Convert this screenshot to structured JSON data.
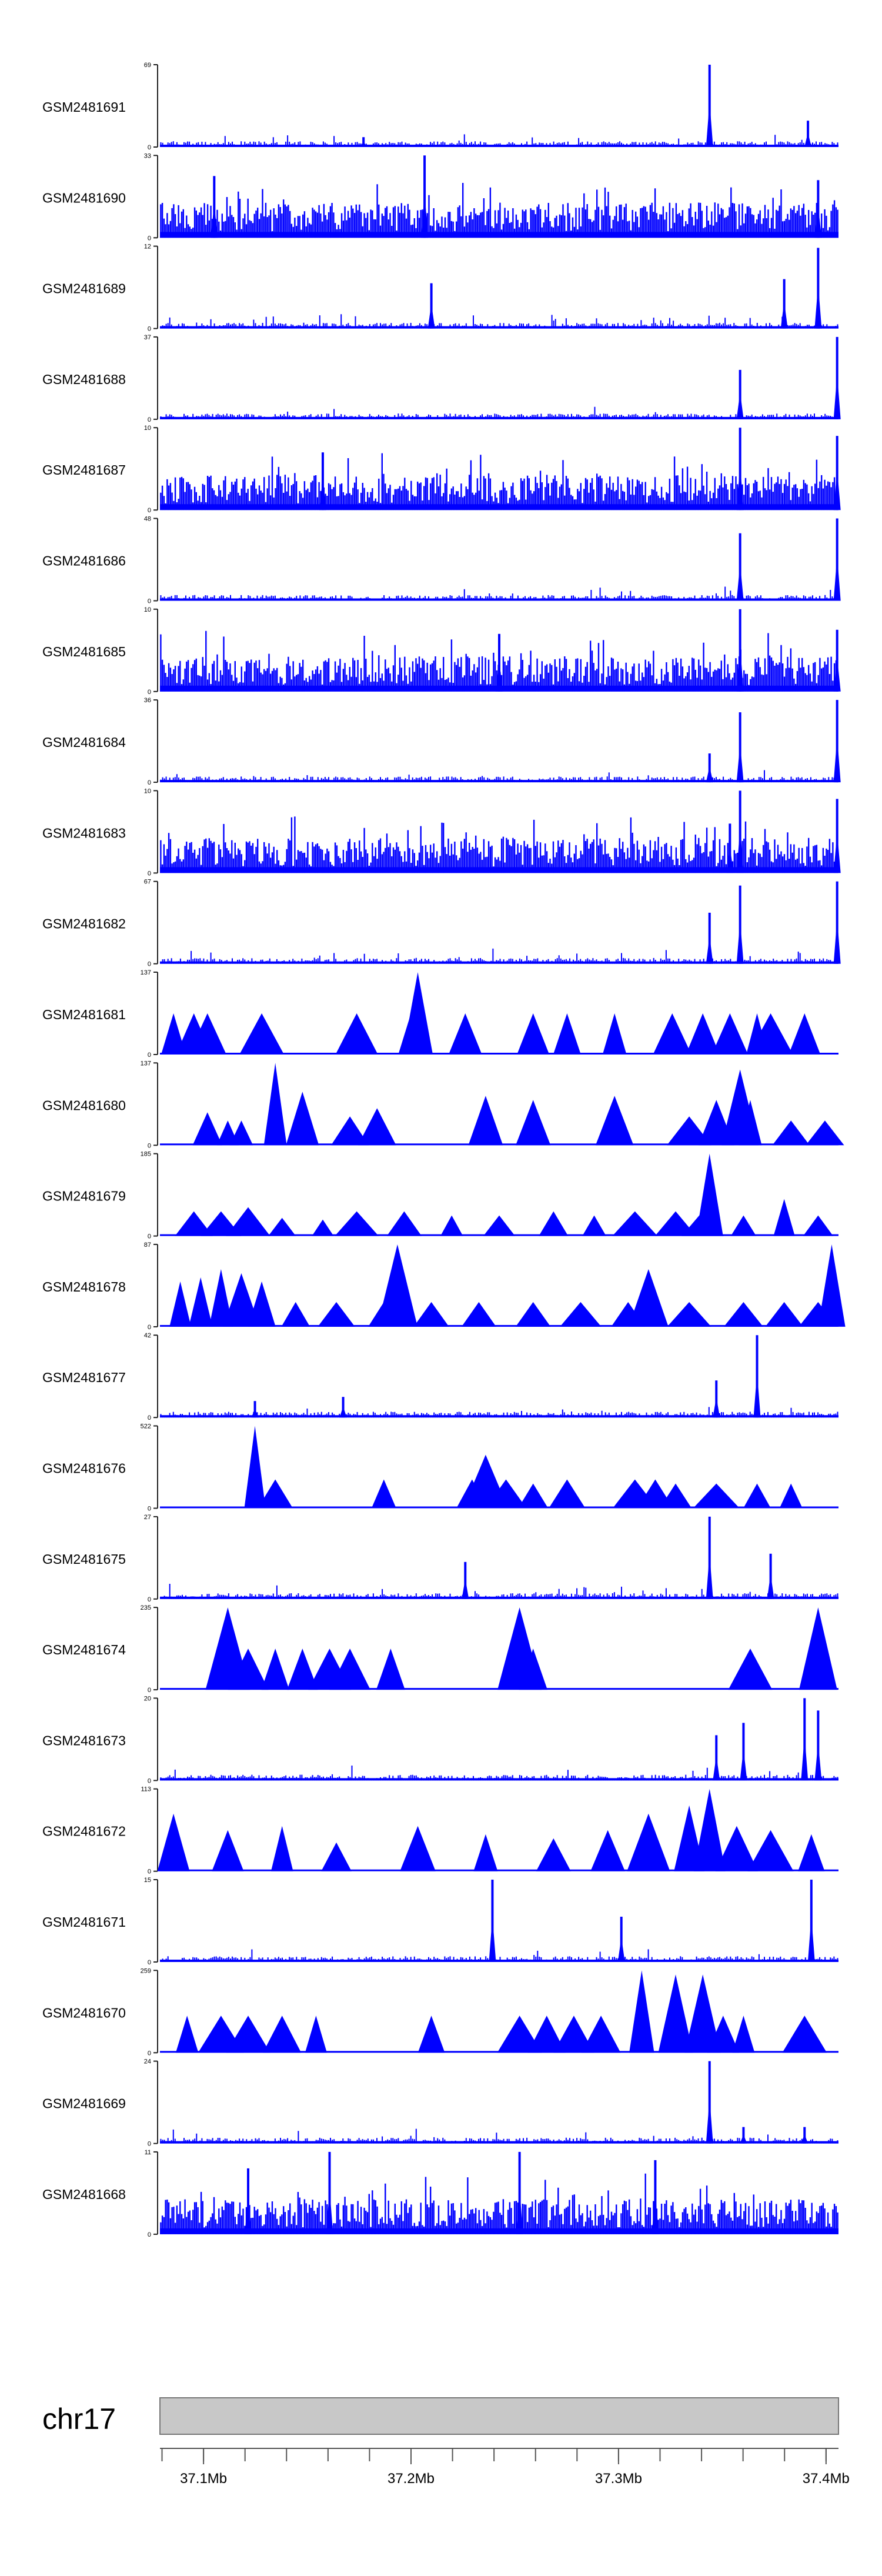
{
  "chart_data": {
    "type": "area",
    "title": "",
    "track_color": "#0000ff",
    "axis_color": "#222222",
    "tracks": [
      {
        "name": "GSM2481691",
        "ymin": 0,
        "ymax": 69,
        "pattern": "noise",
        "peaks": [
          [
            0.81,
            1.0
          ],
          [
            0.955,
            0.32
          ],
          [
            0.3,
            0.12
          ]
        ]
      },
      {
        "name": "GSM2481690",
        "ymin": 0,
        "ymax": 33,
        "pattern": "dense",
        "peaks": [
          [
            0.39,
            1.0
          ],
          [
            0.97,
            0.7
          ],
          [
            0.08,
            0.75
          ]
        ]
      },
      {
        "name": "GSM2481689",
        "ymin": 0,
        "ymax": 12,
        "pattern": "noise",
        "peaks": [
          [
            0.97,
            0.98
          ],
          [
            0.92,
            0.6
          ],
          [
            0.4,
            0.55
          ]
        ]
      },
      {
        "name": "GSM2481688",
        "ymin": 0,
        "ymax": 37,
        "pattern": "noise",
        "peaks": [
          [
            0.855,
            0.6
          ],
          [
            0.998,
            1.0
          ]
        ]
      },
      {
        "name": "GSM2481687",
        "ymin": 0,
        "ymax": 10,
        "pattern": "dense",
        "peaks": [
          [
            0.855,
            1.0
          ],
          [
            0.998,
            0.9
          ],
          [
            0.24,
            0.7
          ]
        ]
      },
      {
        "name": "GSM2481686",
        "ymin": 0,
        "ymax": 48,
        "pattern": "noise",
        "peaks": [
          [
            0.855,
            0.82
          ],
          [
            0.998,
            1.0
          ]
        ]
      },
      {
        "name": "GSM2481685",
        "ymin": 0,
        "ymax": 10,
        "pattern": "dense",
        "peaks": [
          [
            0.855,
            1.0
          ],
          [
            0.5,
            0.7
          ],
          [
            0.998,
            0.75
          ]
        ]
      },
      {
        "name": "GSM2481684",
        "ymin": 0,
        "ymax": 36,
        "pattern": "noise",
        "peaks": [
          [
            0.81,
            0.35
          ],
          [
            0.855,
            0.85
          ],
          [
            0.998,
            1.0
          ]
        ]
      },
      {
        "name": "GSM2481683",
        "ymin": 0,
        "ymax": 10,
        "pattern": "dense",
        "peaks": [
          [
            0.855,
            1.0
          ],
          [
            0.84,
            0.6
          ],
          [
            0.998,
            0.9
          ]
        ]
      },
      {
        "name": "GSM2481682",
        "ymin": 0,
        "ymax": 67,
        "pattern": "noise",
        "peaks": [
          [
            0.81,
            0.62
          ],
          [
            0.855,
            0.95
          ],
          [
            0.998,
            1.0
          ]
        ]
      },
      {
        "name": "GSM2481681",
        "ymin": 0,
        "ymax": 137,
        "pattern": "tri",
        "peaks": [
          [
            0.02,
            0.5
          ],
          [
            0.05,
            0.5
          ],
          [
            0.07,
            0.5
          ],
          [
            0.15,
            0.5
          ],
          [
            0.29,
            0.5
          ],
          [
            0.37,
            0.5
          ],
          [
            0.38,
            1.0
          ],
          [
            0.45,
            0.5
          ],
          [
            0.55,
            0.5
          ],
          [
            0.6,
            0.5
          ],
          [
            0.67,
            0.5
          ],
          [
            0.755,
            0.5
          ],
          [
            0.8,
            0.5
          ],
          [
            0.84,
            0.5
          ],
          [
            0.88,
            0.5
          ],
          [
            0.9,
            0.5
          ],
          [
            0.95,
            0.5
          ]
        ]
      },
      {
        "name": "GSM2481680",
        "ymin": 0,
        "ymax": 137,
        "pattern": "tri",
        "peaks": [
          [
            0.07,
            0.4
          ],
          [
            0.1,
            0.3
          ],
          [
            0.12,
            0.3
          ],
          [
            0.17,
            1.0
          ],
          [
            0.21,
            0.65
          ],
          [
            0.28,
            0.35
          ],
          [
            0.32,
            0.45
          ],
          [
            0.48,
            0.6
          ],
          [
            0.55,
            0.55
          ],
          [
            0.67,
            0.6
          ],
          [
            0.78,
            0.35
          ],
          [
            0.82,
            0.55
          ],
          [
            0.855,
            0.92
          ],
          [
            0.87,
            0.55
          ],
          [
            0.93,
            0.3
          ],
          [
            0.98,
            0.3
          ]
        ]
      },
      {
        "name": "GSM2481679",
        "ymin": 0,
        "ymax": 185,
        "pattern": "tri",
        "peaks": [
          [
            0.05,
            0.3
          ],
          [
            0.09,
            0.3
          ],
          [
            0.13,
            0.35
          ],
          [
            0.18,
            0.22
          ],
          [
            0.24,
            0.2
          ],
          [
            0.29,
            0.3
          ],
          [
            0.36,
            0.3
          ],
          [
            0.43,
            0.25
          ],
          [
            0.5,
            0.25
          ],
          [
            0.58,
            0.3
          ],
          [
            0.64,
            0.25
          ],
          [
            0.7,
            0.3
          ],
          [
            0.76,
            0.3
          ],
          [
            0.8,
            0.3
          ],
          [
            0.81,
            1.0
          ],
          [
            0.86,
            0.25
          ],
          [
            0.92,
            0.45
          ],
          [
            0.97,
            0.25
          ]
        ]
      },
      {
        "name": "GSM2481678",
        "ymin": 0,
        "ymax": 87,
        "pattern": "tri",
        "peaks": [
          [
            0.03,
            0.55
          ],
          [
            0.06,
            0.6
          ],
          [
            0.09,
            0.7
          ],
          [
            0.12,
            0.65
          ],
          [
            0.15,
            0.55
          ],
          [
            0.2,
            0.3
          ],
          [
            0.26,
            0.3
          ],
          [
            0.33,
            0.3
          ],
          [
            0.35,
            1.0
          ],
          [
            0.4,
            0.3
          ],
          [
            0.47,
            0.3
          ],
          [
            0.55,
            0.3
          ],
          [
            0.62,
            0.3
          ],
          [
            0.69,
            0.3
          ],
          [
            0.72,
            0.7
          ],
          [
            0.78,
            0.3
          ],
          [
            0.86,
            0.3
          ],
          [
            0.92,
            0.3
          ],
          [
            0.97,
            0.3
          ],
          [
            0.99,
            1.0
          ]
        ]
      },
      {
        "name": "GSM2481677",
        "ymin": 0,
        "ymax": 42,
        "pattern": "noise",
        "peaks": [
          [
            0.88,
            1.0
          ],
          [
            0.14,
            0.2
          ],
          [
            0.27,
            0.25
          ],
          [
            0.82,
            0.45
          ]
        ]
      },
      {
        "name": "GSM2481676",
        "ymin": 0,
        "ymax": 522,
        "pattern": "tri",
        "peaks": [
          [
            0.14,
            1.0
          ],
          [
            0.17,
            0.35
          ],
          [
            0.33,
            0.35
          ],
          [
            0.46,
            0.35
          ],
          [
            0.48,
            0.65
          ],
          [
            0.51,
            0.35
          ],
          [
            0.55,
            0.3
          ],
          [
            0.6,
            0.35
          ],
          [
            0.7,
            0.35
          ],
          [
            0.73,
            0.35
          ],
          [
            0.76,
            0.3
          ],
          [
            0.82,
            0.3
          ],
          [
            0.88,
            0.3
          ],
          [
            0.93,
            0.3
          ]
        ]
      },
      {
        "name": "GSM2481675",
        "ymin": 0,
        "ymax": 27,
        "pattern": "noise",
        "peaks": [
          [
            0.81,
            1.0
          ],
          [
            0.45,
            0.45
          ],
          [
            0.9,
            0.55
          ]
        ]
      },
      {
        "name": "GSM2481674",
        "ymin": 0,
        "ymax": 235,
        "pattern": "tri",
        "peaks": [
          [
            0.1,
            1.0
          ],
          [
            0.13,
            0.5
          ],
          [
            0.17,
            0.5
          ],
          [
            0.21,
            0.5
          ],
          [
            0.25,
            0.5
          ],
          [
            0.28,
            0.5
          ],
          [
            0.34,
            0.5
          ],
          [
            0.53,
            1.0
          ],
          [
            0.55,
            0.5
          ],
          [
            0.87,
            0.5
          ],
          [
            0.97,
            1.0
          ]
        ]
      },
      {
        "name": "GSM2481673",
        "ymin": 0,
        "ymax": 20,
        "pattern": "noise",
        "peaks": [
          [
            0.95,
            1.0
          ],
          [
            0.97,
            0.85
          ],
          [
            0.86,
            0.7
          ],
          [
            0.82,
            0.55
          ]
        ]
      },
      {
        "name": "GSM2481672",
        "ymin": 0,
        "ymax": 113,
        "pattern": "tri",
        "peaks": [
          [
            0.02,
            0.7
          ],
          [
            0.1,
            0.5
          ],
          [
            0.18,
            0.55
          ],
          [
            0.26,
            0.35
          ],
          [
            0.38,
            0.55
          ],
          [
            0.48,
            0.45
          ],
          [
            0.58,
            0.4
          ],
          [
            0.66,
            0.5
          ],
          [
            0.72,
            0.7
          ],
          [
            0.78,
            0.8
          ],
          [
            0.81,
            1.0
          ],
          [
            0.85,
            0.55
          ],
          [
            0.9,
            0.5
          ],
          [
            0.96,
            0.45
          ]
        ]
      },
      {
        "name": "GSM2481671",
        "ymin": 0,
        "ymax": 15,
        "pattern": "noise",
        "peaks": [
          [
            0.49,
            1.0
          ],
          [
            0.96,
            1.0
          ],
          [
            0.68,
            0.55
          ]
        ]
      },
      {
        "name": "GSM2481670",
        "ymin": 0,
        "ymax": 259,
        "pattern": "tri",
        "peaks": [
          [
            0.04,
            0.45
          ],
          [
            0.09,
            0.45
          ],
          [
            0.13,
            0.45
          ],
          [
            0.18,
            0.45
          ],
          [
            0.23,
            0.45
          ],
          [
            0.4,
            0.45
          ],
          [
            0.53,
            0.45
          ],
          [
            0.57,
            0.45
          ],
          [
            0.61,
            0.45
          ],
          [
            0.65,
            0.45
          ],
          [
            0.71,
            1.0
          ],
          [
            0.76,
            0.95
          ],
          [
            0.8,
            0.95
          ],
          [
            0.83,
            0.45
          ],
          [
            0.86,
            0.45
          ],
          [
            0.95,
            0.45
          ]
        ]
      },
      {
        "name": "GSM2481669",
        "ymin": 0,
        "ymax": 24,
        "pattern": "noise",
        "peaks": [
          [
            0.81,
            1.0
          ],
          [
            0.86,
            0.2
          ],
          [
            0.95,
            0.2
          ]
        ]
      },
      {
        "name": "GSM2481668",
        "ymin": 0,
        "ymax": 11,
        "pattern": "dense",
        "peaks": [
          [
            0.25,
            1.0
          ],
          [
            0.53,
            1.0
          ],
          [
            0.73,
            0.9
          ],
          [
            0.13,
            0.8
          ]
        ]
      }
    ],
    "ideogram": {
      "chromosome": "chr17",
      "fill_color": "#c8c8c8",
      "xmin_mb": 37.079,
      "xmax_mb": 37.406,
      "ticks": [
        "37.1Mb",
        "37.2Mb",
        "37.3Mb",
        "37.4Mb"
      ],
      "tick_values": [
        37.1,
        37.2,
        37.3,
        37.4
      ],
      "minor_step_mb": 0.02
    }
  }
}
